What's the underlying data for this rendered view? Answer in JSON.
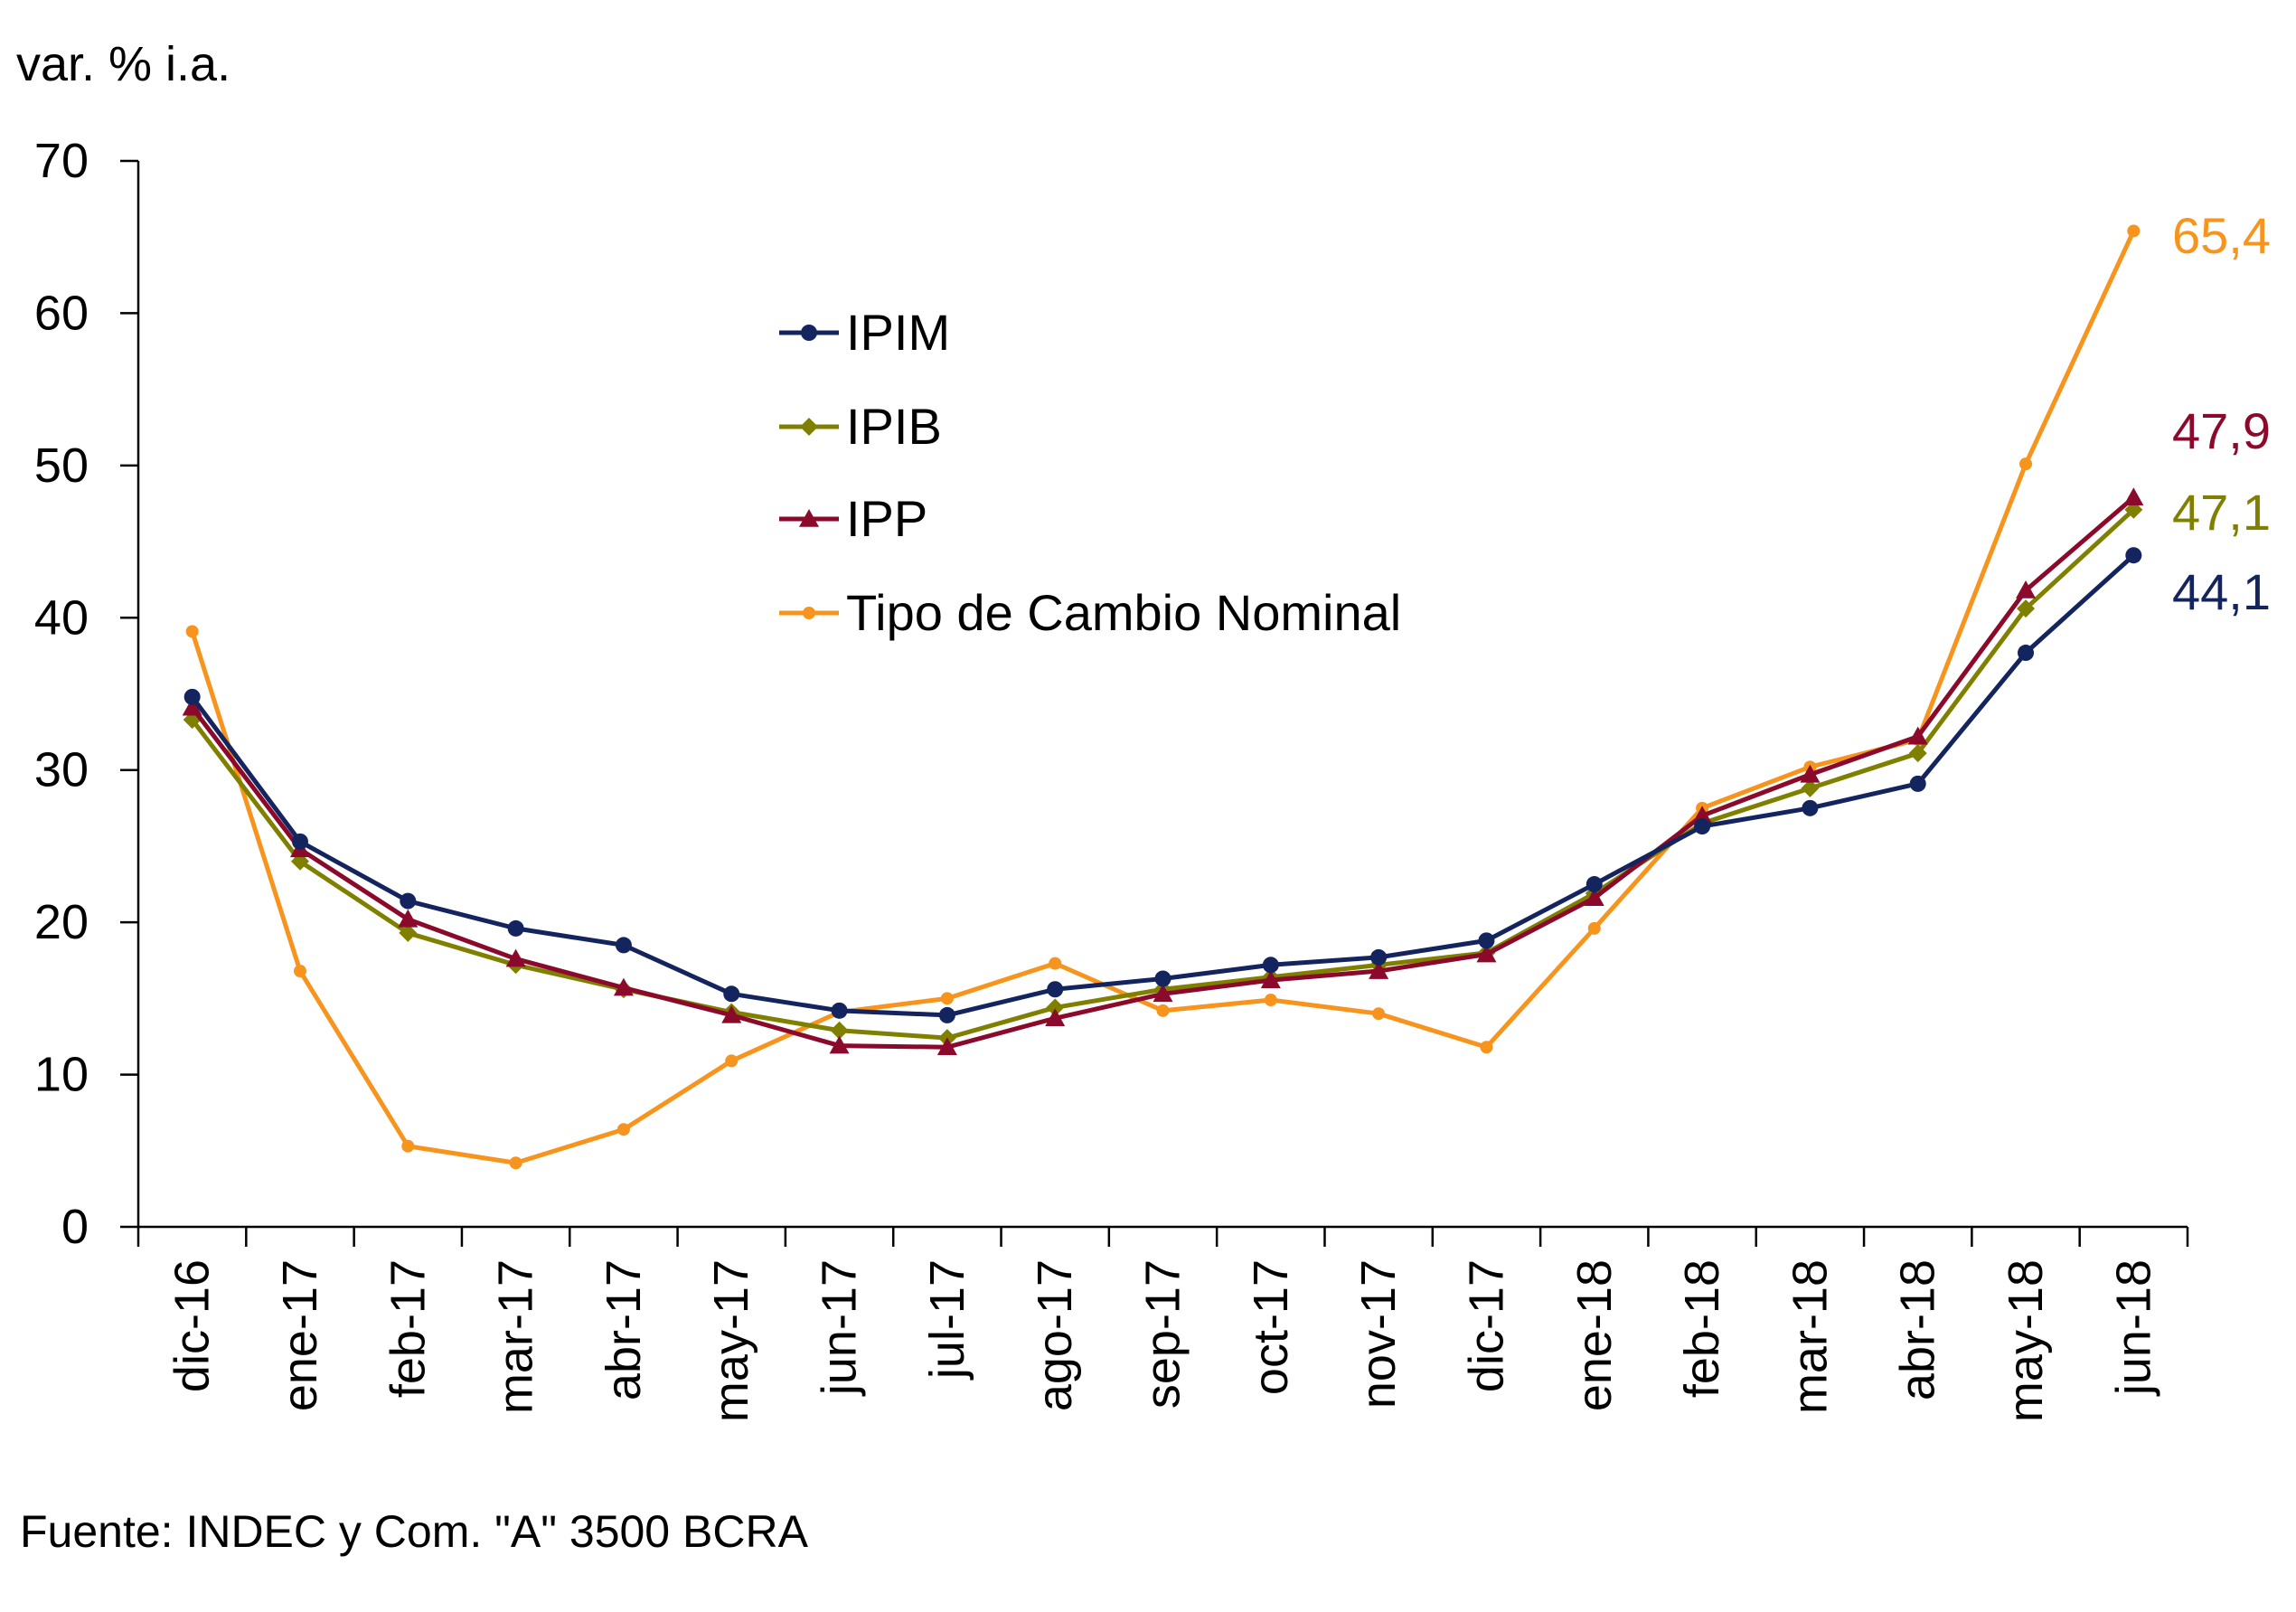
{
  "chart_data": {
    "type": "line",
    "ylabel": "var. % i.a.",
    "source": "Fuente: INDEC y Com. \"A\" 3500 BCRA",
    "ylim": [
      0,
      70
    ],
    "yticks": [
      0,
      10,
      20,
      30,
      40,
      50,
      60,
      70
    ],
    "categories": [
      "dic-16",
      "ene-17",
      "feb-17",
      "mar-17",
      "abr-17",
      "may-17",
      "jun-17",
      "jul-17",
      "ago-17",
      "sep-17",
      "oct-17",
      "nov-17",
      "dic-17",
      "ene-18",
      "feb-18",
      "mar-18",
      "abr-18",
      "may-18",
      "jun-18"
    ],
    "legend_position": "upper-center",
    "series": [
      {
        "name": "IPIM",
        "color": "#13245e",
        "marker": "circle",
        "values": [
          34.8,
          25.3,
          21.4,
          19.6,
          18.5,
          15.3,
          14.2,
          13.9,
          15.6,
          16.3,
          17.2,
          17.7,
          18.8,
          22.5,
          26.3,
          27.5,
          29.1,
          37.7,
          44.1
        ]
      },
      {
        "name": "IPIB",
        "color": "#808000",
        "marker": "diamond",
        "values": [
          33.3,
          24.0,
          19.3,
          17.2,
          15.6,
          14.1,
          12.9,
          12.4,
          14.4,
          15.6,
          16.4,
          17.2,
          18.0,
          21.9,
          26.5,
          28.8,
          31.1,
          40.6,
          47.1
        ]
      },
      {
        "name": "IPP",
        "color": "#8b0a2c",
        "marker": "triangle",
        "values": [
          34.1,
          24.8,
          20.2,
          17.6,
          15.7,
          13.9,
          11.9,
          11.8,
          13.7,
          15.3,
          16.2,
          16.8,
          17.9,
          21.6,
          27.0,
          29.7,
          32.2,
          41.8,
          47.9
        ]
      },
      {
        "name": "Tipo de Cambio Nominal",
        "color": "#f7941d",
        "marker": "circle-small",
        "values": [
          39.1,
          16.8,
          5.3,
          4.2,
          6.4,
          10.9,
          14.1,
          15.0,
          17.3,
          14.2,
          14.9,
          14.0,
          11.8,
          19.6,
          27.5,
          30.2,
          32.0,
          50.1,
          65.4
        ]
      }
    ],
    "end_labels": [
      {
        "text": "65,4",
        "series": "Tipo de Cambio Nominal",
        "color": "#f7941d"
      },
      {
        "text": "47,9",
        "series": "IPP",
        "color": "#8b0a2c"
      },
      {
        "text": "47,1",
        "series": "IPIB",
        "color": "#808000"
      },
      {
        "text": "44,1",
        "series": "IPIM",
        "color": "#13245e"
      }
    ]
  }
}
